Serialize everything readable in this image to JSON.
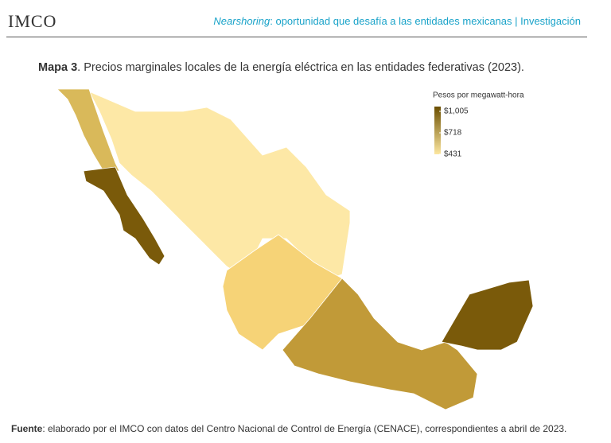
{
  "header": {
    "logo": "IMCO",
    "title_emphasis": "Nearshoring",
    "title_rest": ": oportunidad que desafía a las entidades mexicanas | Investigación"
  },
  "map": {
    "title_label": "Mapa 3",
    "title": ". Precios marginales locales de la energía eléctrica en las entidades federativas (2023).",
    "legend": {
      "title": "Pesos por megawatt-hora",
      "ticks": [
        {
          "value": 1005,
          "label": "$1,005"
        },
        {
          "value": 718,
          "label": "$718"
        },
        {
          "value": 431,
          "label": "$431"
        }
      ],
      "colors": [
        "#fde7a0",
        "#6b4f00"
      ]
    }
  },
  "footer": {
    "label": "Fuente",
    "text": ": elaborado por el IMCO con datos del Centro Nacional de Control de Energía (CENACE), correspondientes a abril de 2023."
  }
}
